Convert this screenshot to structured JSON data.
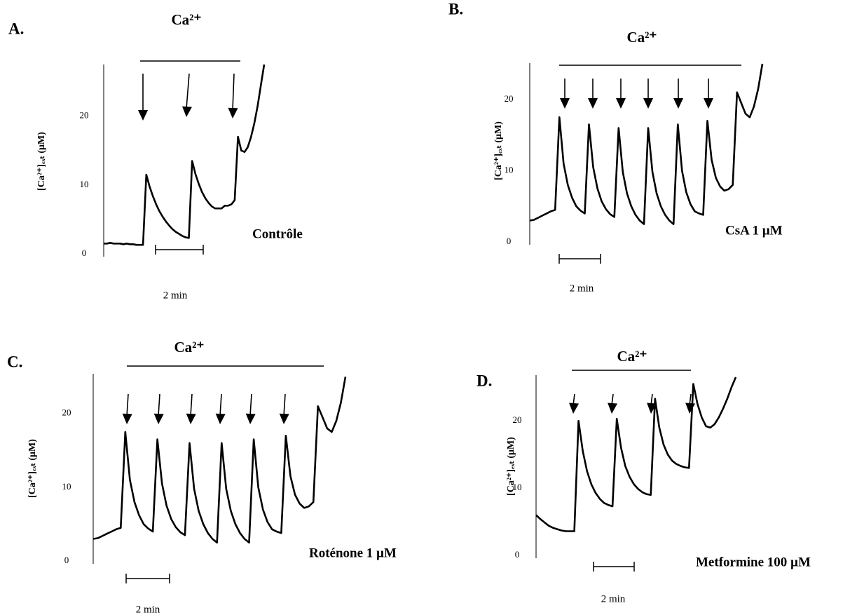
{
  "chart_data": [
    {
      "type": "line",
      "panel": "A.",
      "annotation": "Ca²⁺",
      "y_label": "[Ca²⁺]ₑₓₜ (µM)",
      "condition": "Contrôle",
      "scale_bar": "2 min",
      "color": "#000000",
      "ylim": [
        0,
        27.5
      ],
      "yticks": [
        0,
        10,
        20
      ],
      "values": [
        1.5,
        1.5,
        1.6,
        1.5,
        1.5,
        1.5,
        1.4,
        1.5,
        1.4,
        1.4,
        1.3,
        1.3,
        1.3,
        11.5,
        9.8,
        8.4,
        7.2,
        6.2,
        5.4,
        4.7,
        4.1,
        3.6,
        3.2,
        2.9,
        2.6,
        2.4,
        2.3,
        13.5,
        11.6,
        10.2,
        9.0,
        8.1,
        7.4,
        6.9,
        6.6,
        6.6,
        6.6,
        7.0,
        7.0,
        7.2,
        7.8,
        17,
        15,
        14.8,
        15.5,
        17,
        19,
        21.5,
        24.5,
        27.5
      ]
    },
    {
      "type": "line",
      "panel": "B.",
      "annotation": "Ca²⁺",
      "y_label": "[Ca²⁺]ₑₓₜ (µM)",
      "condition": "CsA 1 µM",
      "scale_bar": "2 min",
      "color": "#000000",
      "ylim": [
        0,
        25.1
      ],
      "yticks": [
        0,
        10,
        20
      ],
      "values": [
        3.0,
        3.1,
        3.4,
        3.7,
        4.0,
        4.3,
        4.5,
        17.5,
        11,
        8,
        6.2,
        5,
        4.4,
        4.0,
        16.5,
        10.5,
        7.5,
        5.7,
        4.6,
        3.9,
        3.5,
        16,
        9.8,
        6.8,
        5,
        3.8,
        3,
        2.5,
        16,
        9.8,
        6.8,
        5,
        3.8,
        3,
        2.5,
        16.5,
        10,
        7,
        5.3,
        4.3,
        4,
        3.8,
        17,
        11.5,
        9,
        7.8,
        7.2,
        7.4,
        8.0,
        21,
        19.5,
        18,
        17.5,
        19,
        21.5,
        25
      ]
    },
    {
      "type": "line",
      "panel": "C.",
      "annotation": "Ca²⁺",
      "y_label": "[Ca²⁺]ₑₓₜ (µM)",
      "condition": "Roténone 1 µM",
      "scale_bar": "2 min",
      "color": "#000000",
      "ylim": [
        0,
        25.4
      ],
      "yticks": [
        0,
        10,
        20
      ],
      "values": [
        3.0,
        3.1,
        3.4,
        3.7,
        4.0,
        4.3,
        4.5,
        17.5,
        11,
        8,
        6.2,
        5,
        4.4,
        4.0,
        16.5,
        10.5,
        7.5,
        5.7,
        4.6,
        3.9,
        3.5,
        16,
        9.8,
        6.8,
        5,
        3.8,
        3,
        2.5,
        16,
        9.8,
        6.8,
        5,
        3.8,
        3,
        2.5,
        16.5,
        10,
        7,
        5.3,
        4.3,
        4,
        3.8,
        17,
        11.5,
        9,
        7.8,
        7.2,
        7.4,
        8.0,
        21,
        19.5,
        18,
        17.5,
        19,
        21.5,
        25
      ]
    },
    {
      "type": "line",
      "panel": "D.",
      "annotation": "Ca²⁺",
      "y_label": "[Ca²⁺]ₑₓₜ (µM)",
      "condition": "Metformine 100 µM",
      "scale_bar": "2 min",
      "color": "#000000",
      "ylim": [
        0,
        26.8
      ],
      "yticks": [
        0,
        10,
        20
      ],
      "values": [
        6,
        5.4,
        4.9,
        4.4,
        4.1,
        3.9,
        3.7,
        3.6,
        3.6,
        3.6,
        20,
        15.5,
        12.5,
        10.6,
        9.3,
        8.4,
        7.8,
        7.5,
        7.3,
        20.3,
        16,
        13.3,
        11.7,
        10.6,
        9.9,
        9.4,
        9.1,
        9.0,
        23.3,
        19,
        16.5,
        15,
        14.1,
        13.6,
        13.3,
        13.1,
        13.0,
        25.5,
        22.5,
        20.5,
        19.2,
        19,
        19.5,
        20.5,
        21.8,
        23.3,
        25,
        26.5
      ]
    }
  ]
}
